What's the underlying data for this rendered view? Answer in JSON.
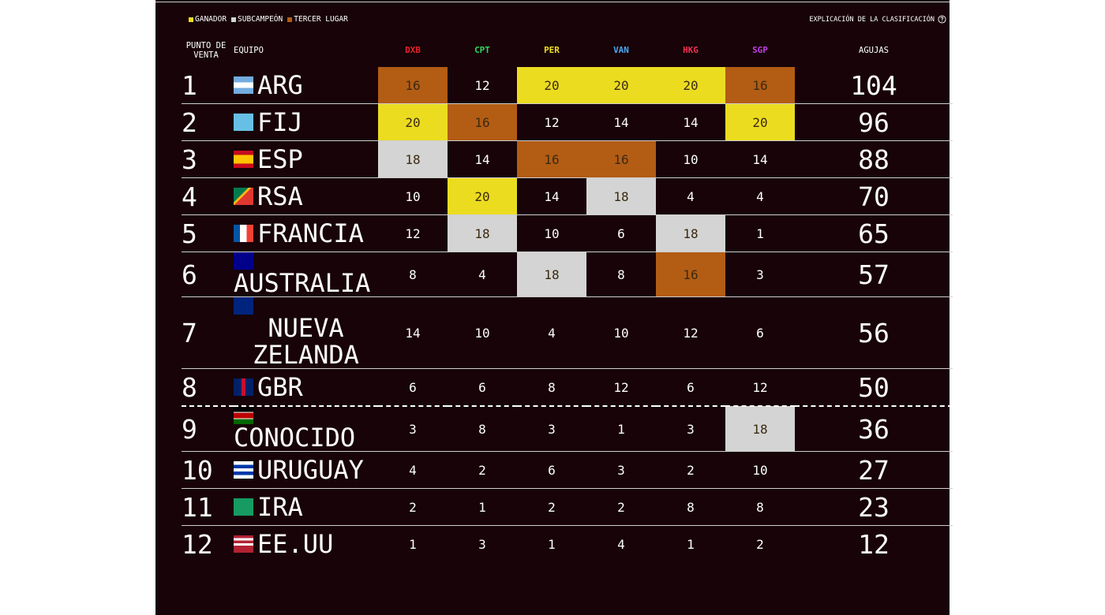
{
  "legend": [
    {
      "label": "GANADOR",
      "color": "#ecdc20"
    },
    {
      "label": "SUBCAMPEÓN",
      "color": "#d4d4d4"
    },
    {
      "label": "TERCER LUGAR",
      "color": "#b35c14"
    }
  ],
  "explanation": "EXPLICACIÓN DE LA CLASIFICACIÓN",
  "header": {
    "rank": "PUNTO DE VENTA",
    "team": "EQUIPO",
    "total": "AGUJAS"
  },
  "events": [
    {
      "label": "DXB",
      "color": "#e8202c"
    },
    {
      "label": "CPT",
      "color": "#30d860"
    },
    {
      "label": "PER",
      "color": "#f0e020"
    },
    {
      "label": "VAN",
      "color": "#4aa8f0"
    },
    {
      "label": "HKG",
      "color": "#f03050"
    },
    {
      "label": "SGP",
      "color": "#c040e0"
    }
  ],
  "rows": [
    {
      "rank": 1,
      "team": "ARG",
      "scores": [
        16,
        12,
        20,
        20,
        20,
        16
      ],
      "total": 104,
      "podium": [
        2,
        null,
        0,
        0,
        0,
        2
      ]
    },
    {
      "rank": 2,
      "team": "FIJ",
      "scores": [
        20,
        16,
        12,
        14,
        14,
        20
      ],
      "total": 96,
      "podium": [
        0,
        2,
        null,
        null,
        null,
        0
      ]
    },
    {
      "rank": 3,
      "team": "ESP",
      "scores": [
        18,
        14,
        16,
        16,
        10,
        14
      ],
      "total": 88,
      "podium": [
        1,
        null,
        2,
        2,
        null,
        null
      ]
    },
    {
      "rank": 4,
      "team": "RSA",
      "scores": [
        10,
        20,
        14,
        18,
        4,
        4
      ],
      "total": 70,
      "podium": [
        null,
        0,
        null,
        1,
        null,
        null
      ]
    },
    {
      "rank": 5,
      "team": "FRANCIA",
      "scores": [
        12,
        18,
        10,
        6,
        18,
        1
      ],
      "total": 65,
      "podium": [
        null,
        1,
        null,
        null,
        1,
        null
      ]
    },
    {
      "rank": 6,
      "team": "AUSTRALIA",
      "scores": [
        8,
        4,
        18,
        8,
        16,
        3
      ],
      "total": 57,
      "podium": [
        null,
        null,
        1,
        null,
        2,
        null
      ]
    },
    {
      "rank": 7,
      "team": "NUEVA ZELANDA",
      "scores": [
        14,
        10,
        4,
        10,
        12,
        6
      ],
      "total": 56,
      "podium": [
        null,
        null,
        null,
        null,
        null,
        null
      ]
    },
    {
      "rank": 8,
      "team": "GBR",
      "scores": [
        6,
        6,
        8,
        12,
        6,
        12
      ],
      "total": 50,
      "podium": [
        null,
        null,
        null,
        null,
        null,
        null
      ]
    },
    {
      "rank": 9,
      "team": "CONOCIDO",
      "scores": [
        3,
        8,
        3,
        1,
        3,
        18
      ],
      "total": 36,
      "podium": [
        null,
        null,
        null,
        null,
        null,
        1
      ]
    },
    {
      "rank": 10,
      "team": "URUGUAY",
      "scores": [
        4,
        2,
        6,
        3,
        2,
        10
      ],
      "total": 27,
      "podium": [
        null,
        null,
        null,
        null,
        null,
        null
      ]
    },
    {
      "rank": 11,
      "team": "IRA",
      "scores": [
        2,
        1,
        2,
        2,
        8,
        8
      ],
      "total": 23,
      "podium": [
        null,
        null,
        null,
        null,
        null,
        null
      ]
    },
    {
      "rank": 12,
      "team": "EE.UU",
      "scores": [
        1,
        3,
        1,
        4,
        1,
        2
      ],
      "total": 12,
      "podium": [
        null,
        null,
        null,
        null,
        null,
        null
      ]
    }
  ]
}
